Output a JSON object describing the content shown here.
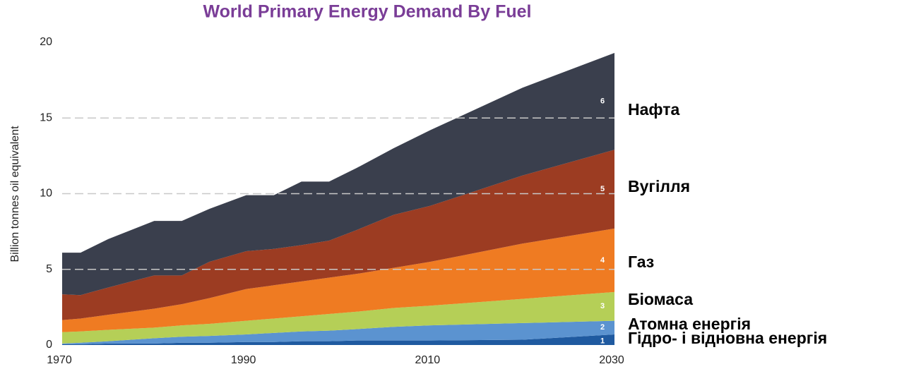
{
  "chart_data": {
    "type": "stacked_area",
    "title": "World Primary Energy Demand By Fuel",
    "y_label": "Billion tonnes oil equivalent",
    "x": [
      1970,
      1972,
      1975,
      1980,
      1983,
      1986,
      1990,
      1993,
      1996,
      1999,
      2002,
      2006,
      2010,
      2020,
      2030
    ],
    "series": [
      {
        "name": "Гідро- і відновна енергія",
        "number": "1",
        "color": "#1f5aa0",
        "values": [
          0.05,
          0.05,
          0.1,
          0.1,
          0.15,
          0.15,
          0.2,
          0.2,
          0.25,
          0.25,
          0.3,
          0.3,
          0.3,
          0.35,
          0.7
        ]
      },
      {
        "name": "Атомна енергія",
        "number": "2",
        "color": "#5b93d0",
        "values": [
          0.05,
          0.1,
          0.15,
          0.35,
          0.4,
          0.45,
          0.5,
          0.6,
          0.65,
          0.7,
          0.75,
          0.9,
          1.0,
          1.1,
          0.9
        ]
      },
      {
        "name": "Біомаса",
        "number": "3",
        "color": "#b5cf57",
        "values": [
          0.75,
          0.75,
          0.75,
          0.7,
          0.75,
          0.8,
          0.9,
          0.95,
          1.0,
          1.1,
          1.15,
          1.25,
          1.3,
          1.6,
          1.9
        ]
      },
      {
        "name": "Газ",
        "number": "4",
        "color": "#ef7b22",
        "values": [
          0.8,
          0.85,
          1.0,
          1.25,
          1.4,
          1.7,
          2.1,
          2.2,
          2.3,
          2.4,
          2.5,
          2.65,
          2.9,
          3.65,
          4.2
        ]
      },
      {
        "name": "Вугілля",
        "number": "5",
        "color": "#9c3c22",
        "values": [
          1.7,
          1.55,
          1.8,
          2.2,
          1.9,
          2.4,
          2.5,
          2.4,
          2.4,
          2.45,
          2.9,
          3.5,
          3.7,
          4.5,
          5.2
        ]
      },
      {
        "name": "Нафта",
        "number": "6",
        "color": "#3a3f4d",
        "values": [
          2.75,
          2.8,
          3.2,
          3.6,
          3.6,
          3.5,
          3.7,
          3.55,
          4.2,
          3.9,
          4.1,
          4.4,
          5.0,
          5.8,
          6.4
        ]
      }
    ],
    "xlim": [
      1970,
      2030
    ],
    "xticks": [
      1970,
      1990,
      2010,
      2030
    ],
    "ylim": [
      0,
      20
    ],
    "yticks": [
      0,
      5,
      10,
      15,
      20
    ],
    "grid": [
      5,
      10,
      15
    ]
  }
}
